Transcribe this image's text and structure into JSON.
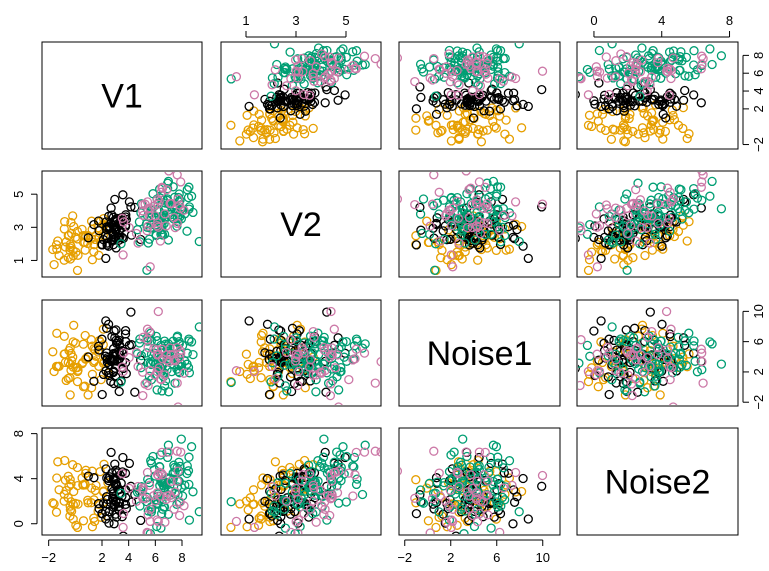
{
  "chart_data": {
    "type": "scatter",
    "kind": "pairs-matrix",
    "variables": [
      "V1",
      "V2",
      "Noise1",
      "Noise2"
    ],
    "ranges": {
      "V1": [
        -2.5,
        9.5
      ],
      "V2": [
        0,
        6.4
      ],
      "Noise1": [
        -2.5,
        11.5
      ],
      "Noise2": [
        -1,
        8.5
      ]
    },
    "ticks": {
      "V1": [
        -2,
        2,
        4,
        6,
        8
      ],
      "V2": [
        1,
        3,
        5
      ],
      "Noise1": [
        -2,
        2,
        6,
        10
      ],
      "Noise2": [
        0,
        4,
        8
      ]
    },
    "groups": [
      {
        "color": "#E69F00",
        "means": [
          0.5,
          2.2,
          3.5,
          2.3
        ],
        "sds": [
          1.1,
          0.7,
          2.2,
          1.6
        ],
        "n": 60
      },
      {
        "color": "#000000",
        "means": [
          3.0,
          3.0,
          3.8,
          2.8
        ],
        "sds": [
          0.7,
          0.8,
          2.2,
          1.6
        ],
        "n": 70
      },
      {
        "color": "#009E73",
        "means": [
          6.6,
          3.6,
          4.0,
          3.0
        ],
        "sds": [
          1.2,
          0.9,
          2.2,
          1.6
        ],
        "n": 90
      },
      {
        "color": "#CC79A7",
        "means": [
          6.3,
          4.2,
          4.2,
          3.1
        ],
        "sds": [
          1.2,
          0.9,
          2.4,
          1.7
        ],
        "n": 45
      }
    ],
    "grid": false,
    "legend": "none"
  }
}
